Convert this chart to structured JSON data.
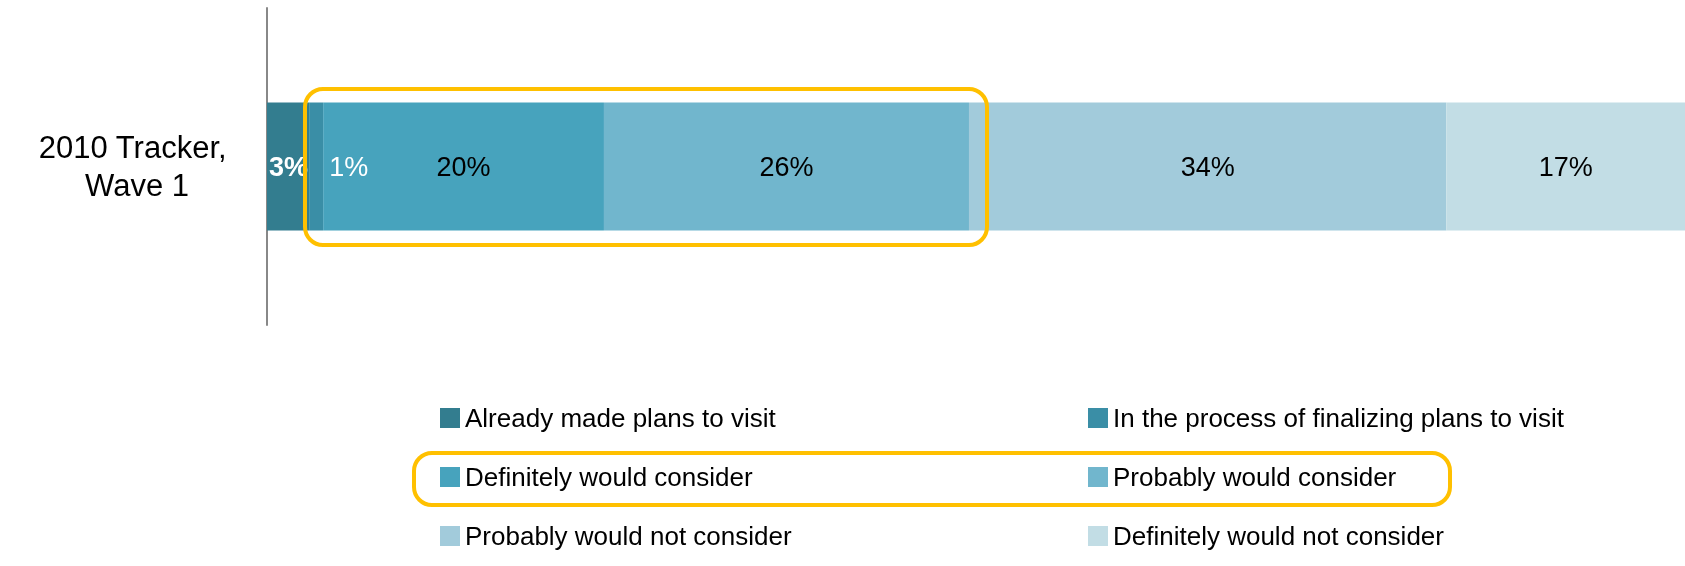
{
  "chart_data": {
    "type": "bar",
    "orientation": "horizontal",
    "stacked": true,
    "categories": [
      "2010 Tracker, Wave 1"
    ],
    "series": [
      {
        "name": "Already made plans to visit",
        "color": "#337d8f",
        "values": [
          3
        ],
        "value_labels": [
          "3%"
        ]
      },
      {
        "name": "In the process of finalizing plans to visit",
        "color": "#3a8ea6",
        "values": [
          1
        ],
        "value_labels": [
          "1%"
        ]
      },
      {
        "name": "Definitely would consider",
        "color": "#47a3bd",
        "values": [
          20
        ],
        "value_labels": [
          "20%"
        ]
      },
      {
        "name": "Probably would consider",
        "color": "#71b6cd",
        "values": [
          26
        ],
        "value_labels": [
          "26%"
        ]
      },
      {
        "name": "Probably would not consider",
        "color": "#a2cbdb",
        "values": [
          34
        ],
        "value_labels": [
          "34%"
        ]
      },
      {
        "name": "Definitely would not consider",
        "color": "#c2dde5",
        "values": [
          17
        ],
        "value_labels": [
          "17%"
        ]
      }
    ],
    "legend": "bottom"
  }
}
